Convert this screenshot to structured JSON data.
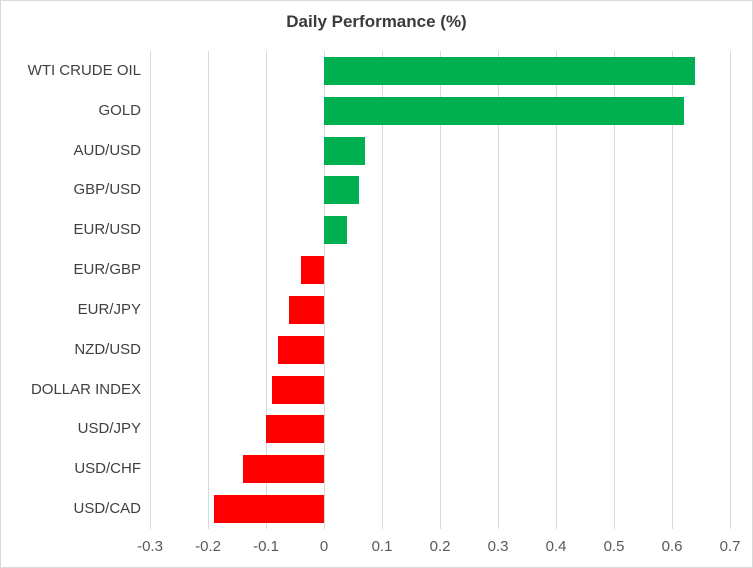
{
  "chart_data": {
    "type": "bar",
    "orientation": "horizontal",
    "title": "Daily Performance (%)",
    "categories": [
      "WTI CRUDE OIL",
      "GOLD",
      "AUD/USD",
      "GBP/USD",
      "EUR/USD",
      "EUR/GBP",
      "EUR/JPY",
      "NZD/USD",
      "DOLLAR INDEX",
      "USD/JPY",
      "USD/CHF",
      "USD/CAD"
    ],
    "values": [
      0.64,
      0.62,
      0.07,
      0.06,
      0.04,
      -0.04,
      -0.06,
      -0.08,
      -0.09,
      -0.1,
      -0.14,
      -0.19
    ],
    "xlabel": "",
    "ylabel": "",
    "xlim": [
      -0.3,
      0.7
    ],
    "xticks": [
      -0.3,
      -0.2,
      -0.1,
      0,
      0.1,
      0.2,
      0.3,
      0.4,
      0.5,
      0.6,
      0.7
    ],
    "xtick_labels": [
      "-0.3",
      "-0.2",
      "-0.1",
      "0",
      "0.1",
      "0.2",
      "0.3",
      "0.4",
      "0.5",
      "0.6",
      "0.7"
    ],
    "grid": "vertical",
    "legend": "none",
    "colors": {
      "positive_bar": "#00B050",
      "negative_bar": "#FF0000",
      "gridline": "#D9D9D9",
      "border": "#D9D9D9",
      "title_text": "#3B3B3B",
      "category_text": "#404040",
      "tick_text": "#595959",
      "background": "#FFFFFF"
    }
  }
}
